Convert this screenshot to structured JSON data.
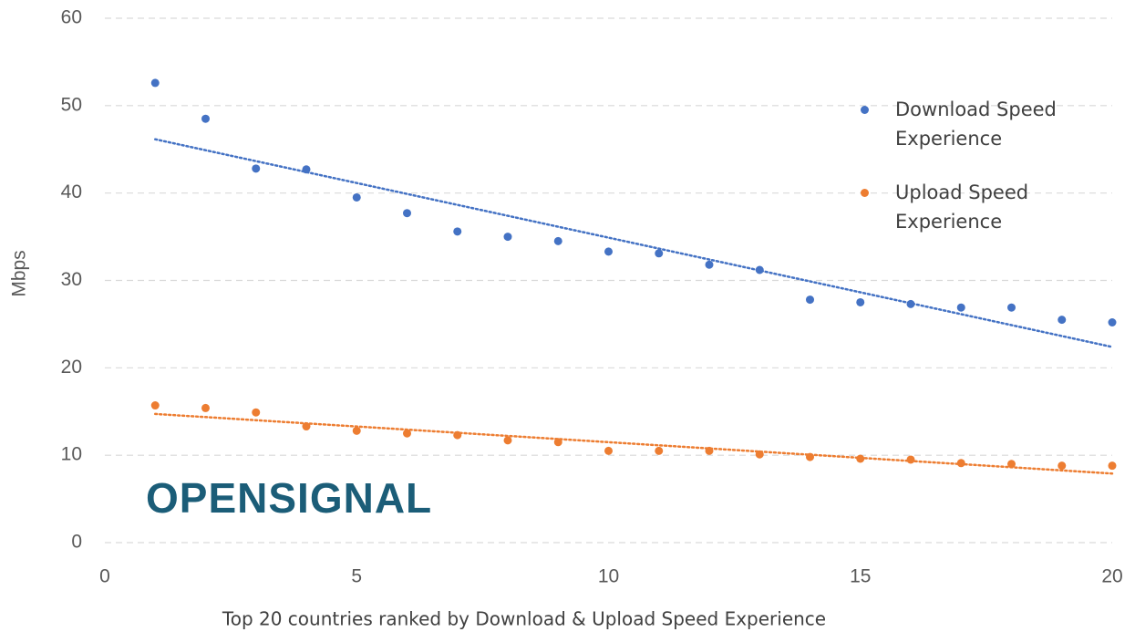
{
  "chart_data": {
    "type": "scatter",
    "x_label": "Top 20 countries ranked by Download & Upload Speed Experience",
    "y_label": "Mbps",
    "x": [
      1,
      2,
      3,
      4,
      5,
      6,
      7,
      8,
      9,
      10,
      11,
      12,
      13,
      14,
      15,
      16,
      17,
      18,
      19,
      20
    ],
    "series": [
      {
        "name": "Download Speed Experience",
        "color": "#4472c4",
        "values": [
          52.6,
          48.5,
          42.8,
          42.7,
          39.5,
          37.7,
          35.6,
          35.0,
          34.5,
          33.3,
          33.1,
          31.8,
          31.2,
          27.8,
          27.5,
          27.3,
          26.9,
          26.9,
          25.5,
          25.2
        ]
      },
      {
        "name": "Upload Speed Experience",
        "color": "#ed7d31",
        "values": [
          15.7,
          15.4,
          14.9,
          13.3,
          12.8,
          12.5,
          12.3,
          11.7,
          11.5,
          10.5,
          10.5,
          10.5,
          10.1,
          9.8,
          9.6,
          9.5,
          9.1,
          9.0,
          8.8,
          8.8
        ]
      }
    ],
    "trendline": true,
    "xlim": [
      0,
      20
    ],
    "xticks": [
      0,
      5,
      10,
      15,
      20
    ],
    "ylim": [
      0,
      60
    ],
    "yticks": [
      0,
      10,
      20,
      30,
      40,
      50,
      60
    ],
    "grid": true,
    "logo": "OPENSIGNAL"
  }
}
